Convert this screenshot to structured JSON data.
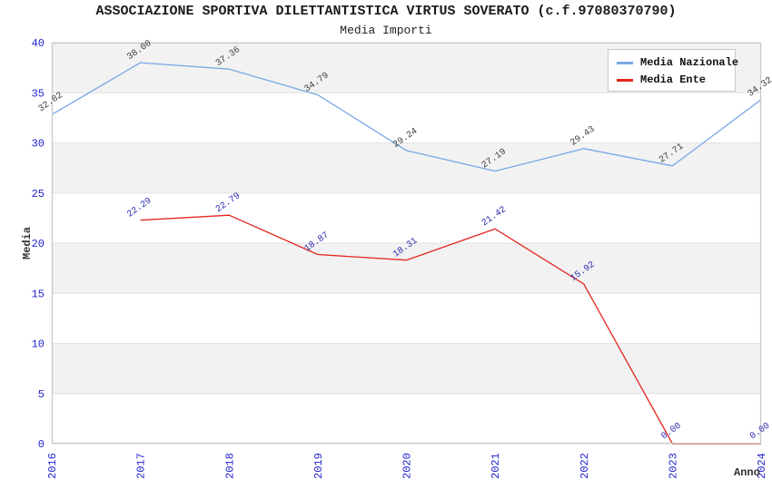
{
  "title": "ASSOCIAZIONE SPORTIVA DILETTANTISTICA VIRTUS SOVERATO (c.f.97080370790)",
  "subtitle": "Media Importi",
  "chart_data": {
    "type": "line",
    "x": [
      "2016",
      "2017",
      "2018",
      "2019",
      "2020",
      "2021",
      "2022",
      "2023",
      "2024"
    ],
    "series": [
      {
        "name": "Media Nazionale",
        "color": "#7aa8e6",
        "label_color": "#3c3c3c",
        "values": [
          32.82,
          38.0,
          37.36,
          34.79,
          29.24,
          27.19,
          29.43,
          27.71,
          34.32
        ]
      },
      {
        "name": "Media Ente",
        "color": "#e3271e",
        "label_color": "#2a2ab0",
        "values": [
          null,
          22.29,
          22.79,
          18.87,
          18.31,
          21.42,
          15.92,
          0.0,
          0.0
        ]
      }
    ],
    "xlabel": "Anno",
    "ylabel": "Media",
    "ylim": [
      0,
      40
    ],
    "ytick_step": 5,
    "yticks": [
      0,
      5,
      10,
      15,
      20,
      25,
      30,
      35,
      40
    ],
    "grid": "horizontal-bands-alternating",
    "legend_position": "top-right",
    "point_labels_decimals": 2
  },
  "colors": {
    "band": "#f2f2f2",
    "gridline": "#e1e1e1",
    "plot_border": "#c9c9c9",
    "tick_label": "#2222cf",
    "axis_title": "#333333",
    "title_text": "#1c1c1c"
  }
}
